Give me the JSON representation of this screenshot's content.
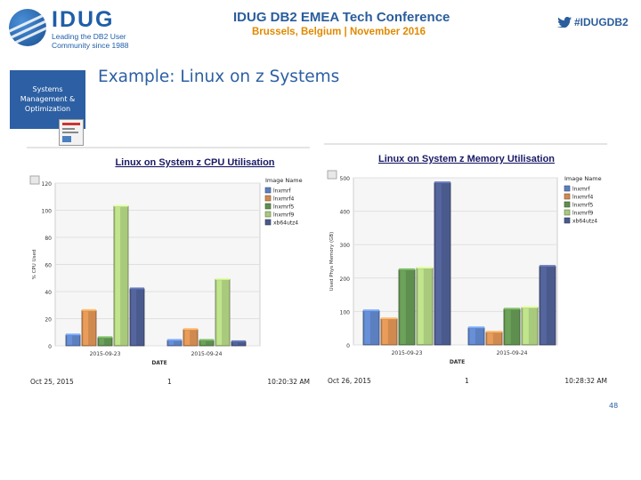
{
  "header": {
    "logo_word": "IDUG",
    "logo_tagline": "Leading the DB2 User Community since 1988",
    "conference_title": "IDUG DB2 EMEA Tech Conference",
    "conference_subtitle": "Brussels, Belgium  |  November 2016",
    "hashtag": "#IDUGDB2"
  },
  "sidebar": {
    "label": "Systems Management & Optimization"
  },
  "slide": {
    "title": "Example: Linux on z Systems",
    "page_number": "48"
  },
  "colors": {
    "brand_blue": "#2c5fa3",
    "accent_orange": "#e08a00",
    "title_underline": "#1a1a66"
  },
  "chart_data": [
    {
      "type": "bar",
      "title": "Linux on System z CPU Utilisation",
      "xlabel": "DATE",
      "ylabel": "% CPU Used",
      "ylim": [
        0,
        120
      ],
      "yticks": [
        0,
        20,
        40,
        60,
        80,
        100,
        120
      ],
      "grid": true,
      "legend_title": "Image Name",
      "legend_position": "right",
      "categories": [
        "2015-09-23",
        "2015-09-24"
      ],
      "series": [
        {
          "name": "lnxmrf",
          "color": "#5b7fbf",
          "values": [
            8,
            4
          ]
        },
        {
          "name": "lnxmrf4",
          "color": "#d08a4f",
          "values": [
            26,
            12
          ]
        },
        {
          "name": "lnxmrf5",
          "color": "#5f8f4f",
          "values": [
            6,
            4
          ]
        },
        {
          "name": "lnxmrf9",
          "color": "#a9c97c",
          "values": [
            103,
            49
          ]
        },
        {
          "name": "xb64utz4",
          "color": "#4b5a8c",
          "values": [
            42,
            3
          ]
        }
      ],
      "footer": {
        "date": "Oct 25, 2015",
        "page": "1",
        "time": "10:20:32 AM"
      }
    },
    {
      "type": "bar",
      "title": "Linux on System z Memory Utilisation",
      "xlabel": "DATE",
      "ylabel": "Used Phys Memory (GB)",
      "ylim": [
        0,
        500
      ],
      "yticks": [
        0,
        100,
        200,
        300,
        400,
        500
      ],
      "grid": true,
      "legend_title": "Image Name",
      "legend_position": "right",
      "categories": [
        "2015-09-23",
        "2015-09-24"
      ],
      "series": [
        {
          "name": "lnxmrf",
          "color": "#5b7fbf",
          "values": [
            102,
            51
          ]
        },
        {
          "name": "lnxmrf4",
          "color": "#d08a4f",
          "values": [
            78,
            38
          ]
        },
        {
          "name": "lnxmrf5",
          "color": "#5f8f4f",
          "values": [
            225,
            107
          ]
        },
        {
          "name": "lnxmrf9",
          "color": "#a9c97c",
          "values": [
            230,
            112
          ]
        },
        {
          "name": "xb64utz4",
          "color": "#4b5a8c",
          "values": [
            485,
            235
          ]
        }
      ],
      "footer": {
        "date": "Oct 26, 2015",
        "page": "1",
        "time": "10:28:32 AM"
      }
    }
  ]
}
